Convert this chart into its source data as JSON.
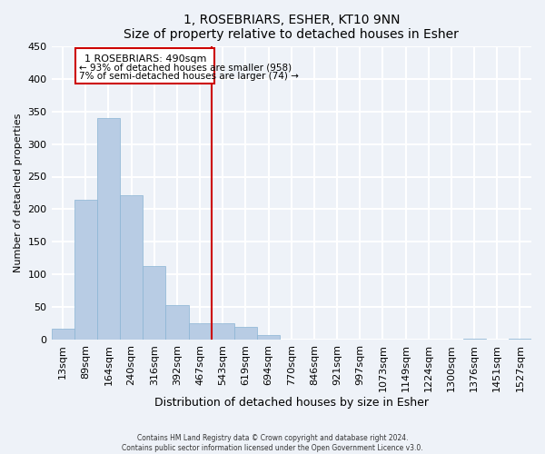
{
  "title": "1, ROSEBRIARS, ESHER, KT10 9NN",
  "subtitle": "Size of property relative to detached houses in Esher",
  "xlabel": "Distribution of detached houses by size in Esher",
  "ylabel": "Number of detached properties",
  "bar_color": "#b8cce4",
  "bar_edge_color": "#8ab4d4",
  "bin_labels": [
    "13sqm",
    "89sqm",
    "164sqm",
    "240sqm",
    "316sqm",
    "392sqm",
    "467sqm",
    "543sqm",
    "619sqm",
    "694sqm",
    "770sqm",
    "846sqm",
    "921sqm",
    "997sqm",
    "1073sqm",
    "1149sqm",
    "1224sqm",
    "1300sqm",
    "1376sqm",
    "1451sqm",
    "1527sqm"
  ],
  "bar_heights": [
    18,
    215,
    340,
    222,
    113,
    53,
    26,
    25,
    20,
    7,
    0,
    0,
    0,
    0,
    0,
    0,
    0,
    0,
    2,
    0,
    2
  ],
  "vline_color": "#cc0000",
  "vline_label": "1 ROSEBRIARS: 490sqm",
  "annotation_line1": "← 93% of detached houses are smaller (958)",
  "annotation_line2": "7% of semi-detached houses are larger (74) →",
  "ylim": [
    0,
    450
  ],
  "yticks": [
    0,
    50,
    100,
    150,
    200,
    250,
    300,
    350,
    400,
    450
  ],
  "footer_line1": "Contains HM Land Registry data © Crown copyright and database right 2024.",
  "footer_line2": "Contains public sector information licensed under the Open Government Licence v3.0.",
  "background_color": "#eef2f8",
  "plot_background": "#eef2f8",
  "grid_color": "#ffffff",
  "box_color": "#cc0000"
}
